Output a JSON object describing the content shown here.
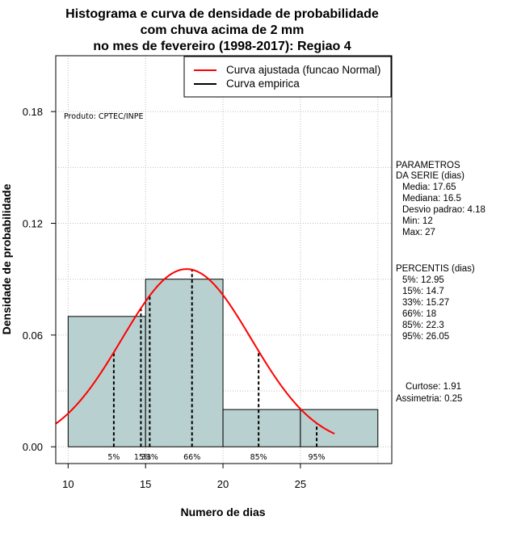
{
  "title_lines": [
    "Histograma e curva de densidade de probabilidade",
    "com chuva acima de 2 mm",
    "no mes de fevereiro (1998-2017): Regiao 4"
  ],
  "product_label": "Produto: CPTEC/INPE",
  "legend": [
    {
      "label": "Curva ajustada (funcao Normal)",
      "color": "#ff0000"
    },
    {
      "label": "Curva empirica",
      "color": "#000000"
    }
  ],
  "parametros": {
    "header": [
      "PARAMETROS",
      "DA SERIE (dias)"
    ],
    "lines": [
      "Media: 17.65",
      "Mediana: 16.5",
      "Desvio padrao: 4.18",
      "Min: 12",
      "Max: 27"
    ]
  },
  "percentis": {
    "header": [
      "PERCENTIS (dias)"
    ],
    "lines": [
      "5%: 12.95",
      "15%: 14.7",
      "33%: 15.27",
      "66%: 18",
      "85%: 22.3",
      "95%: 26.05"
    ]
  },
  "shape": {
    "lines": [
      "Curtose: 1.91",
      "Assimetria: 0.25"
    ]
  },
  "colors": {
    "bar_fill": "#b8d0cf",
    "curve": "#ff0000",
    "grid": "#bebebe"
  },
  "chart_data": {
    "type": "histogram",
    "title": "Histograma e curva de densidade de probabilidade com chuva acima de 2 mm no mes de fevereiro (1998-2017): Regiao 4",
    "xlabel": "Numero de dias",
    "ylabel": "Densidade de probabilidade",
    "xlim": [
      9.2,
      30.9
    ],
    "ylim": [
      -0.009,
      0.21
    ],
    "xticks": [
      10,
      15,
      20,
      25
    ],
    "yticks": [
      0.0,
      0.06,
      0.12,
      0.18
    ],
    "ytick_labels": [
      "0.00",
      "0.06",
      "0.12",
      "0.18"
    ],
    "bins": [
      {
        "start": 10,
        "end": 15,
        "density": 0.07
      },
      {
        "start": 15,
        "end": 20,
        "density": 0.09
      },
      {
        "start": 20,
        "end": 25,
        "density": 0.02
      },
      {
        "start": 25,
        "end": 30,
        "density": 0.02
      }
    ],
    "normal_fit": {
      "mean": 17.65,
      "sd": 4.18,
      "x_range": [
        9.2,
        27.2
      ]
    },
    "percentiles": [
      {
        "label": "5%",
        "value": 12.95
      },
      {
        "label": "15%",
        "value": 14.7
      },
      {
        "label": "33%",
        "value": 15.27
      },
      {
        "label": "66%",
        "value": 18.0
      },
      {
        "label": "85%",
        "value": 22.3
      },
      {
        "label": "95%",
        "value": 26.05
      }
    ]
  }
}
